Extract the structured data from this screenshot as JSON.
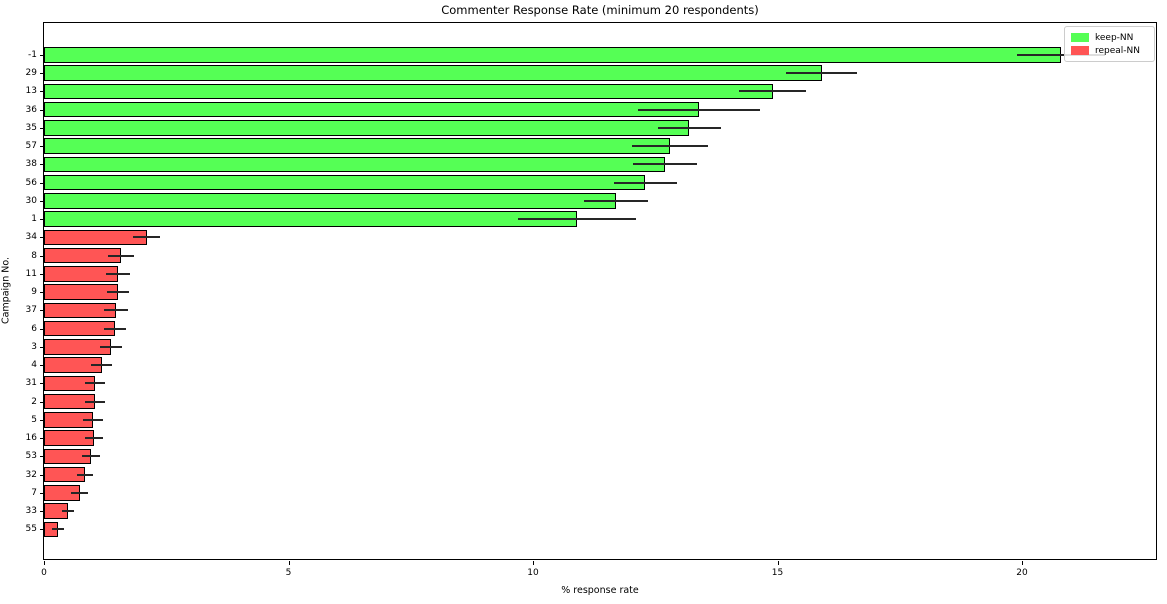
{
  "chart_data": {
    "type": "bar",
    "orientation": "horizontal",
    "title": "Commenter Response Rate (minimum 20 respondents)",
    "xlabel": "% response rate",
    "ylabel": "Campaign No.",
    "xlim": [
      0,
      22.75
    ],
    "xticks": [
      0,
      5,
      10,
      15,
      20
    ],
    "grid": false,
    "legend_position": "upper right",
    "series_colors": {
      "keep-NN": "#55ff55",
      "repeal-NN": "#ff5555"
    },
    "bar_edge_color": "#000000",
    "error_bar_color": "#262626",
    "legend": [
      {
        "label": "keep-NN",
        "color": "#55ff55"
      },
      {
        "label": "repeal-NN",
        "color": "#ff5555"
      }
    ],
    "bars": [
      {
        "category": "-1",
        "series": "keep-NN",
        "value": 20.8,
        "error": 0.9
      },
      {
        "category": "29",
        "series": "keep-NN",
        "value": 15.9,
        "error": 0.72
      },
      {
        "category": "13",
        "series": "keep-NN",
        "value": 14.9,
        "error": 0.69
      },
      {
        "category": "36",
        "series": "keep-NN",
        "value": 13.4,
        "error": 1.25
      },
      {
        "category": "35",
        "series": "keep-NN",
        "value": 13.2,
        "error": 0.65
      },
      {
        "category": "57",
        "series": "keep-NN",
        "value": 12.8,
        "error": 0.77
      },
      {
        "category": "38",
        "series": "keep-NN",
        "value": 12.7,
        "error": 0.66
      },
      {
        "category": "56",
        "series": "keep-NN",
        "value": 12.3,
        "error": 0.65
      },
      {
        "category": "30",
        "series": "keep-NN",
        "value": 11.7,
        "error": 0.65
      },
      {
        "category": "1",
        "series": "keep-NN",
        "value": 10.9,
        "error": 1.2
      },
      {
        "category": "34",
        "series": "repeal-NN",
        "value": 2.1,
        "error": 0.27
      },
      {
        "category": "8",
        "series": "repeal-NN",
        "value": 1.57,
        "error": 0.27
      },
      {
        "category": "11",
        "series": "repeal-NN",
        "value": 1.51,
        "error": 0.25
      },
      {
        "category": "9",
        "series": "repeal-NN",
        "value": 1.51,
        "error": 0.22
      },
      {
        "category": "37",
        "series": "repeal-NN",
        "value": 1.47,
        "error": 0.24
      },
      {
        "category": "6",
        "series": "repeal-NN",
        "value": 1.45,
        "error": 0.22
      },
      {
        "category": "3",
        "series": "repeal-NN",
        "value": 1.37,
        "error": 0.22
      },
      {
        "category": "4",
        "series": "repeal-NN",
        "value": 1.18,
        "error": 0.21
      },
      {
        "category": "31",
        "series": "repeal-NN",
        "value": 1.04,
        "error": 0.2
      },
      {
        "category": "2",
        "series": "repeal-NN",
        "value": 1.04,
        "error": 0.2
      },
      {
        "category": "5",
        "series": "repeal-NN",
        "value": 1.0,
        "error": 0.2
      },
      {
        "category": "16",
        "series": "repeal-NN",
        "value": 1.02,
        "error": 0.19
      },
      {
        "category": "53",
        "series": "repeal-NN",
        "value": 0.96,
        "error": 0.18
      },
      {
        "category": "32",
        "series": "repeal-NN",
        "value": 0.84,
        "error": 0.16
      },
      {
        "category": "7",
        "series": "repeal-NN",
        "value": 0.73,
        "error": 0.17
      },
      {
        "category": "33",
        "series": "repeal-NN",
        "value": 0.49,
        "error": 0.13
      },
      {
        "category": "55",
        "series": "repeal-NN",
        "value": 0.29,
        "error": 0.12
      }
    ]
  }
}
